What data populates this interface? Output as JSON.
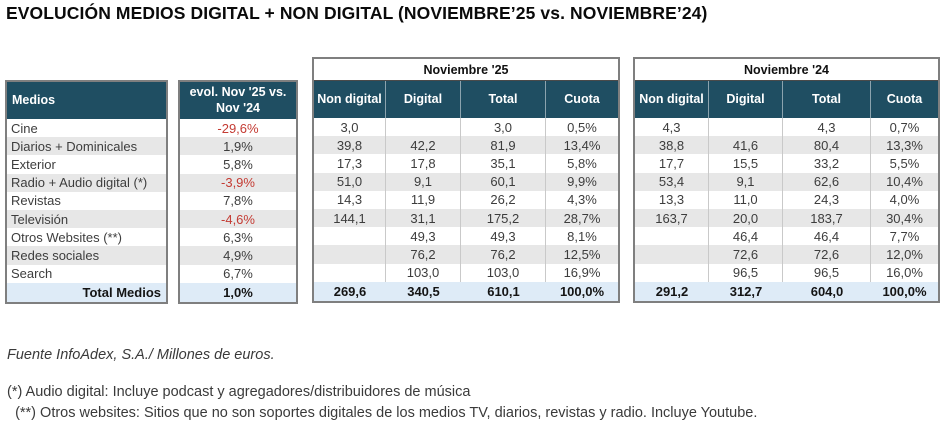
{
  "title": "EVOLUCIÓN MEDIOS DIGITAL + NON DIGITAL (NOVIEMBRE’25 vs. NOVIEMBRE’24)",
  "colors": {
    "header_bg": "#1F4E62",
    "alt_row_bg": "#E7E7E7",
    "total_row_bg": "#DEEBF7",
    "negative": "#C43B33"
  },
  "medios_table": {
    "header": "Medios",
    "rows": [
      "Cine",
      "Diarios + Dominicales",
      "Exterior",
      "Radio + Audio digital (*)",
      "Revistas",
      "Televisión",
      "Otros Websites (**)",
      "Redes sociales",
      "Search"
    ],
    "total_label": "Total Medios"
  },
  "evol_column": {
    "header": "evol. Nov '25 vs. Nov '24",
    "values": [
      "-29,6%",
      "1,9%",
      "5,8%",
      "-3,9%",
      "7,8%",
      "-4,6%",
      "6,3%",
      "4,9%",
      "6,7%"
    ],
    "total": "1,0%"
  },
  "nov25_table": {
    "title": "Noviembre '25",
    "columns": [
      "Non digital",
      "Digital",
      "Total",
      "Cuota"
    ],
    "rows": [
      [
        "3,0",
        "",
        "3,0",
        "0,5%"
      ],
      [
        "39,8",
        "42,2",
        "81,9",
        "13,4%"
      ],
      [
        "17,3",
        "17,8",
        "35,1",
        "5,8%"
      ],
      [
        "51,0",
        "9,1",
        "60,1",
        "9,9%"
      ],
      [
        "14,3",
        "11,9",
        "26,2",
        "4,3%"
      ],
      [
        "144,1",
        "31,1",
        "175,2",
        "28,7%"
      ],
      [
        "",
        "49,3",
        "49,3",
        "8,1%"
      ],
      [
        "",
        "76,2",
        "76,2",
        "12,5%"
      ],
      [
        "",
        "103,0",
        "103,0",
        "16,9%"
      ]
    ],
    "total": [
      "269,6",
      "340,5",
      "610,1",
      "100,0%"
    ]
  },
  "nov24_table": {
    "title": "Noviembre '24",
    "columns": [
      "Non digital",
      "Digital",
      "Total",
      "Cuota"
    ],
    "rows": [
      [
        "4,3",
        "",
        "4,3",
        "0,7%"
      ],
      [
        "38,8",
        "41,6",
        "80,4",
        "13,3%"
      ],
      [
        "17,7",
        "15,5",
        "33,2",
        "5,5%"
      ],
      [
        "53,4",
        "9,1",
        "62,6",
        "10,4%"
      ],
      [
        "13,3",
        "11,0",
        "24,3",
        "4,0%"
      ],
      [
        "163,7",
        "20,0",
        "183,7",
        "30,4%"
      ],
      [
        "",
        "46,4",
        "46,4",
        "7,7%"
      ],
      [
        "",
        "72,6",
        "72,6",
        "12,0%"
      ],
      [
        "",
        "96,5",
        "96,5",
        "16,0%"
      ]
    ],
    "total": [
      "291,2",
      "312,7",
      "604,0",
      "100,0%"
    ]
  },
  "footer": {
    "fuente": "Fuente InfoAdex, S.A./ Millones de euros.",
    "note1": "(*) Audio digital: Incluye podcast y agregadores/distribuidores de música",
    "note2": "  (**) Otros websites: Sitios que no son soportes digitales de los medios TV, diarios, revistas y radio. Incluye Youtube."
  }
}
